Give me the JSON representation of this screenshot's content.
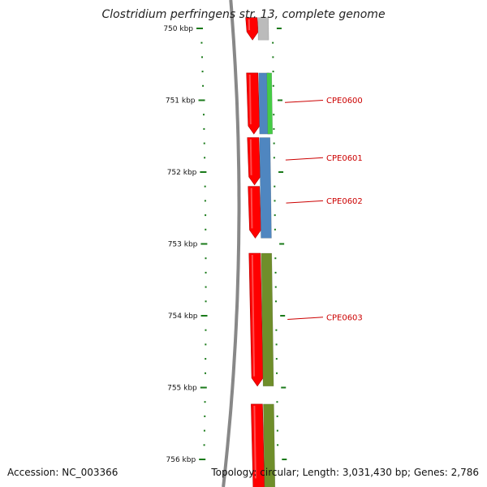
{
  "title": "Clostridium perfringens str. 13, complete genome",
  "footer": {
    "accession_label": "Accession:",
    "accession": "NC_003366",
    "topology_label": "Topology:",
    "topology": "circular",
    "length_label": "Length:",
    "length": "3,031,430 bp",
    "genes_label": "Genes:",
    "genes": "2,786"
  },
  "axis": {
    "unit": "kbp",
    "ticks": [
      {
        "kbp": 750,
        "label": "750 kbp"
      },
      {
        "kbp": 751,
        "label": "751 kbp"
      },
      {
        "kbp": 752,
        "label": "752 kbp"
      },
      {
        "kbp": 753,
        "label": "753 kbp"
      },
      {
        "kbp": 754,
        "label": "754 kbp"
      },
      {
        "kbp": 755,
        "label": "755 kbp"
      },
      {
        "kbp": 756,
        "label": "756 kbp"
      }
    ]
  },
  "colors": {
    "backbone": "#888888",
    "tick": "#1a7a1a",
    "forward_gene": "#ff0000",
    "label": "#cc0000",
    "leader": "#cc0000",
    "grey_feature": "#bbbbbb",
    "green_feature": "#44cc44",
    "blue_feature": "#4f86c0",
    "olive_feature": "#6f8e2a"
  },
  "tracks": {
    "forward": [
      {
        "start_kbp": 749.85,
        "end_kbp": 750.16,
        "arrow": "down",
        "color": "#ff0000"
      },
      {
        "start_kbp": 750.62,
        "end_kbp": 751.47,
        "arrow": "down",
        "color": "#ff0000"
      },
      {
        "start_kbp": 751.52,
        "end_kbp": 752.18,
        "arrow": "down",
        "color": "#ff0000"
      },
      {
        "start_kbp": 752.2,
        "end_kbp": 752.92,
        "arrow": "down",
        "color": "#ff0000"
      },
      {
        "start_kbp": 753.13,
        "end_kbp": 754.98,
        "arrow": "down",
        "color": "#ff0000"
      },
      {
        "start_kbp": 755.23,
        "end_kbp": 756.4,
        "arrow": "none",
        "color": "#ff0000"
      }
    ],
    "features": [
      {
        "start_kbp": 749.85,
        "end_kbp": 750.16,
        "lane": 1,
        "color": "#bbbbbb"
      },
      {
        "start_kbp": 750.62,
        "end_kbp": 751.47,
        "lane": 1,
        "color": "#4f86c0"
      },
      {
        "start_kbp": 750.62,
        "end_kbp": 751.47,
        "lane": 2,
        "color": "#44cc44"
      },
      {
        "start_kbp": 751.52,
        "end_kbp": 752.92,
        "lane": 1,
        "color": "#4f86c0"
      },
      {
        "start_kbp": 753.13,
        "end_kbp": 754.98,
        "lane": 1,
        "color": "#6f8e2a"
      },
      {
        "start_kbp": 755.23,
        "end_kbp": 756.4,
        "lane": 1,
        "color": "#6f8e2a"
      }
    ]
  },
  "genes": [
    {
      "name": "CPE0600",
      "label_kbp": 751.0,
      "target_kbp": 751.02
    },
    {
      "name": "CPE0601",
      "label_kbp": 751.8,
      "target_kbp": 751.82
    },
    {
      "name": "CPE0602",
      "label_kbp": 752.4,
      "target_kbp": 752.42
    },
    {
      "name": "CPE0603",
      "label_kbp": 754.02,
      "target_kbp": 754.04
    }
  ]
}
